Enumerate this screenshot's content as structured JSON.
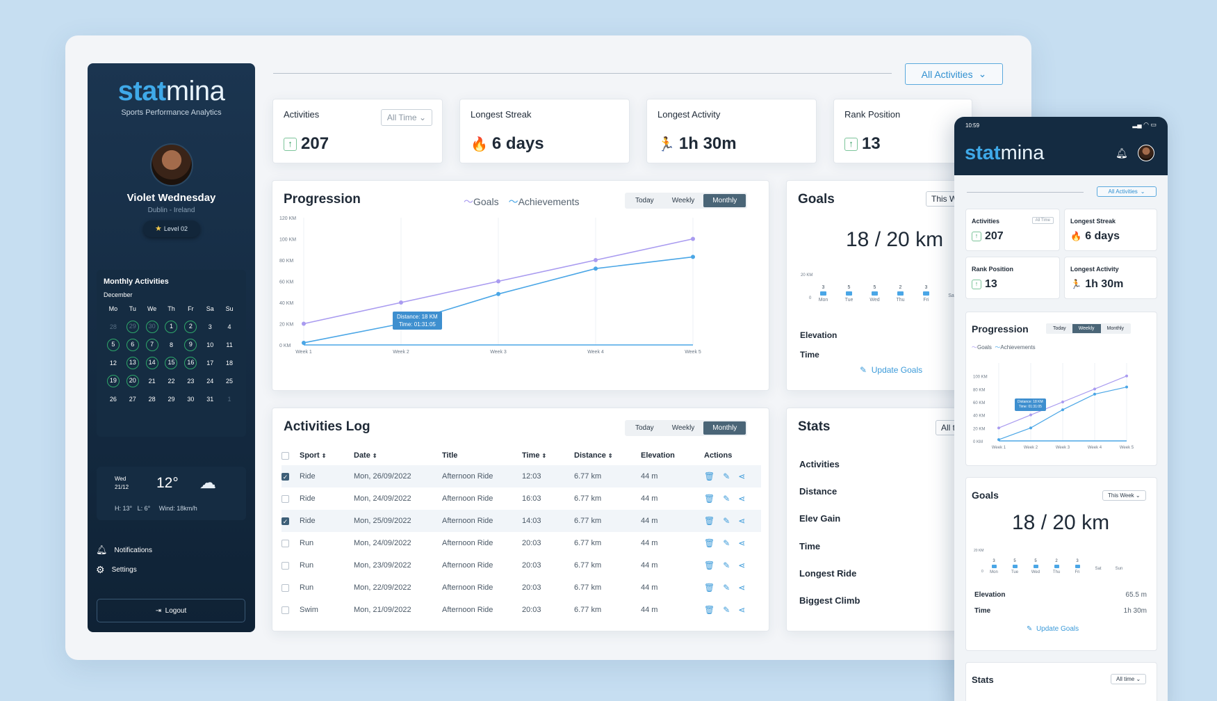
{
  "brand": {
    "part1": "stat",
    "part2": "mina",
    "tagline": "Sports Performance Analytics"
  },
  "user": {
    "name": "Violet Wednesday",
    "location": "Dublin - Ireland",
    "level": "Level 02"
  },
  "calendar": {
    "title": "Monthly Activities",
    "month": "December",
    "days": [
      "Mo",
      "Tu",
      "We",
      "Th",
      "Fr",
      "Sa",
      "Su"
    ],
    "cells": [
      {
        "n": "28",
        "s": "faded"
      },
      {
        "n": "29",
        "s": "faded-ring"
      },
      {
        "n": "30",
        "s": "faded-ring"
      },
      {
        "n": "1",
        "s": "ring"
      },
      {
        "n": "2",
        "s": "ring"
      },
      {
        "n": "3",
        "s": ""
      },
      {
        "n": "4",
        "s": ""
      },
      {
        "n": "5",
        "s": "ring"
      },
      {
        "n": "6",
        "s": "ring"
      },
      {
        "n": "7",
        "s": "ring"
      },
      {
        "n": "8",
        "s": ""
      },
      {
        "n": "9",
        "s": "ring"
      },
      {
        "n": "10",
        "s": ""
      },
      {
        "n": "11",
        "s": ""
      },
      {
        "n": "12",
        "s": ""
      },
      {
        "n": "13",
        "s": "ring"
      },
      {
        "n": "14",
        "s": "ring"
      },
      {
        "n": "15",
        "s": "ring"
      },
      {
        "n": "16",
        "s": "ring"
      },
      {
        "n": "17",
        "s": ""
      },
      {
        "n": "18",
        "s": ""
      },
      {
        "n": "19",
        "s": "ring"
      },
      {
        "n": "20",
        "s": "ring"
      },
      {
        "n": "21",
        "s": ""
      },
      {
        "n": "22",
        "s": ""
      },
      {
        "n": "23",
        "s": ""
      },
      {
        "n": "24",
        "s": ""
      },
      {
        "n": "25",
        "s": ""
      },
      {
        "n": "26",
        "s": ""
      },
      {
        "n": "27",
        "s": ""
      },
      {
        "n": "28",
        "s": ""
      },
      {
        "n": "29",
        "s": ""
      },
      {
        "n": "30",
        "s": ""
      },
      {
        "n": "31",
        "s": ""
      },
      {
        "n": "1",
        "s": "faded"
      }
    ]
  },
  "weather": {
    "day": "Wed",
    "date": "21/12",
    "temp": "12°",
    "high": "H: 13°",
    "low": "L: 6°",
    "wind": "Wind: 18km/h",
    "icon": "cloud-sun-icon"
  },
  "nav": {
    "notifications": "Notifications",
    "settings": "Settings",
    "logout": "Logout"
  },
  "filter": {
    "activities": "All Activities"
  },
  "stats": {
    "activities": {
      "label": "Activities",
      "value": "207",
      "range": "All Time"
    },
    "streak": {
      "label": "Longest Streak",
      "value": "6 days"
    },
    "longest": {
      "label": "Longest Activity",
      "value": "1h 30m"
    },
    "rank": {
      "label": "Rank Position",
      "value": "13"
    }
  },
  "progression": {
    "title": "Progression",
    "legend": [
      "Goals",
      "Achievements"
    ],
    "tabs": [
      "Today",
      "Weekly",
      "Monthly"
    ],
    "tooltip": {
      "line1": "Distance: 18 KM",
      "line2": "Time: 01:31:05"
    }
  },
  "chart_data": {
    "type": "line",
    "x": [
      "Week 1",
      "Week 2",
      "Week 3",
      "Week 4",
      "Week 5"
    ],
    "y_ticks": [
      "0 KM",
      "20 KM",
      "40 KM",
      "60 KM",
      "80 KM",
      "100 KM",
      "120 KM"
    ],
    "ylim": [
      0,
      120
    ],
    "series": [
      {
        "name": "Goals",
        "values": [
          20,
          40,
          60,
          80,
          100
        ]
      },
      {
        "name": "Achievements",
        "values": [
          2,
          20,
          48,
          72,
          83
        ]
      }
    ],
    "colors": {
      "Goals": "#a99bf0",
      "Achievements": "#4aa6e6"
    }
  },
  "goals": {
    "title": "Goals",
    "range": "This Week",
    "value": "18 / 20 km",
    "ytick": "20 KM",
    "zero": "0",
    "days": [
      "Mon",
      "Tue",
      "Wed",
      "Thu",
      "Fri",
      "Sat",
      "Sun"
    ],
    "counts": [
      "3",
      "5",
      "5",
      "2",
      "3",
      "",
      ""
    ],
    "elevation_label": "Elevation",
    "elevation": "65.5 m",
    "time_label": "Time",
    "time": "1h 30m",
    "update": "Update Goals"
  },
  "log": {
    "title": "Activities Log",
    "tabs": [
      "Today",
      "Weekly",
      "Monthly"
    ],
    "headers": [
      "Sport",
      "Date",
      "Title",
      "Time",
      "Distance",
      "Elevation",
      "Actions"
    ],
    "rows": [
      {
        "sel": true,
        "sport": "Ride",
        "date": "Mon, 26/09/2022",
        "title": "Afternoon Ride",
        "time": "12:03",
        "dist": "6.77 km",
        "elev": "44 m"
      },
      {
        "sel": false,
        "sport": "Ride",
        "date": "Mon, 24/09/2022",
        "title": "Afternoon Ride",
        "time": "16:03",
        "dist": "6.77 km",
        "elev": "44 m"
      },
      {
        "sel": true,
        "sport": "Ride",
        "date": "Mon, 25/09/2022",
        "title": "Afternoon Ride",
        "time": "14:03",
        "dist": "6.77 km",
        "elev": "44 m"
      },
      {
        "sel": false,
        "sport": "Run",
        "date": "Mon, 24/09/2022",
        "title": "Afternoon Ride",
        "time": "20:03",
        "dist": "6.77 km",
        "elev": "44 m"
      },
      {
        "sel": false,
        "sport": "Run",
        "date": "Mon, 23/09/2022",
        "title": "Afternoon Ride",
        "time": "20:03",
        "dist": "6.77 km",
        "elev": "44 m"
      },
      {
        "sel": false,
        "sport": "Run",
        "date": "Mon, 22/09/2022",
        "title": "Afternoon Ride",
        "time": "20:03",
        "dist": "6.77 km",
        "elev": "44 m"
      },
      {
        "sel": false,
        "sport": "Swim",
        "date": "Mon, 21/09/2022",
        "title": "Afternoon Ride",
        "time": "20:03",
        "dist": "6.77 km",
        "elev": "44 m"
      }
    ]
  },
  "statsPanel": {
    "title": "Stats",
    "range": "All time",
    "rows": [
      "Activities",
      "Distance",
      "Elev Gain",
      "Time",
      "Longest Ride",
      "Biggest Climb"
    ]
  },
  "mobile": {
    "clock": "10:59"
  }
}
